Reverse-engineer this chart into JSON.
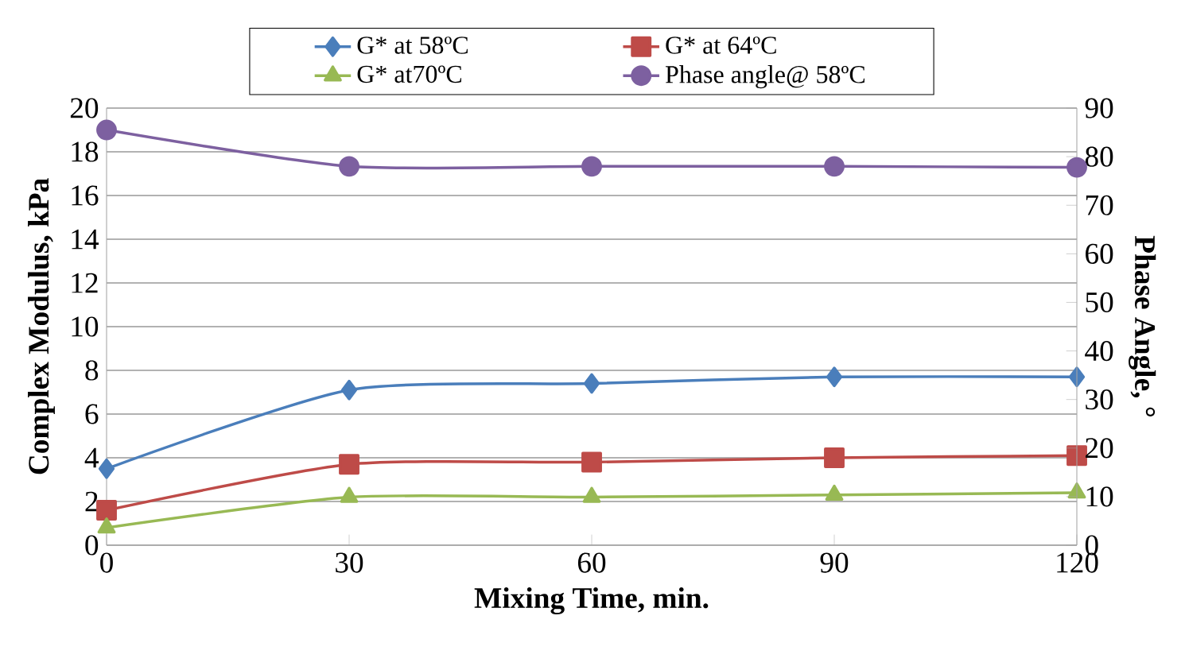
{
  "chart_data": {
    "type": "line",
    "xlabel": "Mixing Time, min.",
    "ylabel": "Complex Modulus, kPa",
    "y2label": "Phase Angle, °",
    "x": [
      0,
      30,
      60,
      90,
      120
    ],
    "xlim": [
      0,
      120
    ],
    "xticks": [
      0,
      30,
      60,
      90,
      120
    ],
    "ylim": [
      0,
      20
    ],
    "yticks": [
      0,
      2,
      4,
      6,
      8,
      10,
      12,
      14,
      16,
      18,
      20
    ],
    "y2lim": [
      0,
      90
    ],
    "y2ticks": [
      0,
      10,
      20,
      30,
      40,
      50,
      60,
      70,
      80,
      90
    ],
    "grid": "y",
    "legend": "top",
    "line_style": "solid",
    "series": [
      {
        "name": "G* at 58ºC",
        "color": "#4a7ebb",
        "marker": "diamond",
        "values": [
          3.5,
          7.1,
          7.4,
          7.7,
          7.7
        ]
      },
      {
        "name": "G* at 64ºC",
        "color": "#be4b48",
        "marker": "square",
        "values": [
          1.6,
          3.7,
          3.8,
          4.0,
          4.1
        ]
      },
      {
        "name": "G* at70ºC",
        "color": "#98b954",
        "marker": "triangle",
        "values": [
          0.8,
          2.2,
          2.2,
          2.3,
          2.4
        ]
      },
      {
        "name": "Phase angle@ 58ºC",
        "color": "#7d60a0",
        "marker": "circle",
        "axis": "y2",
        "values": [
          85.5,
          78,
          78,
          78,
          77.8
        ]
      }
    ]
  }
}
